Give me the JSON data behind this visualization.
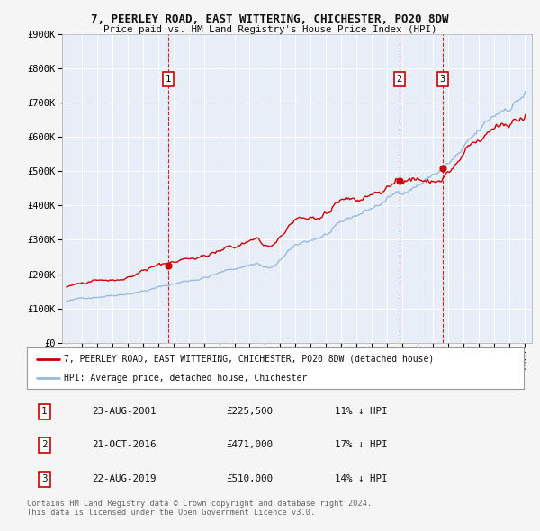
{
  "title": "7, PEERLEY ROAD, EAST WITTERING, CHICHESTER, PO20 8DW",
  "subtitle": "Price paid vs. HM Land Registry's House Price Index (HPI)",
  "property_label": "7, PEERLEY ROAD, EAST WITTERING, CHICHESTER, PO20 8DW (detached house)",
  "hpi_label": "HPI: Average price, detached house, Chichester",
  "property_color": "#cc0000",
  "hpi_color": "#99bbdd",
  "background_color": "#f5f5f5",
  "plot_bg_color": "#e8eef8",
  "grid_color": "#ffffff",
  "transactions": [
    {
      "num": 1,
      "date": "23-AUG-2001",
      "date_x": 2001.65,
      "price": 225500,
      "pct": "11%",
      "dir": "↓"
    },
    {
      "num": 2,
      "date": "21-OCT-2016",
      "date_x": 2016.8,
      "price": 471000,
      "pct": "17%",
      "dir": "↓"
    },
    {
      "num": 3,
      "date": "22-AUG-2019",
      "date_x": 2019.65,
      "price": 510000,
      "pct": "14%",
      "dir": "↓"
    }
  ],
  "ylim": [
    0,
    900000
  ],
  "xlim": [
    1994.7,
    2025.5
  ],
  "yticks": [
    0,
    100000,
    200000,
    300000,
    400000,
    500000,
    600000,
    700000,
    800000,
    900000
  ],
  "ytick_labels": [
    "£0",
    "£100K",
    "£200K",
    "£300K",
    "£400K",
    "£500K",
    "£600K",
    "£700K",
    "£800K",
    "£900K"
  ],
  "footer": "Contains HM Land Registry data © Crown copyright and database right 2024.\nThis data is licensed under the Open Government Licence v3.0."
}
